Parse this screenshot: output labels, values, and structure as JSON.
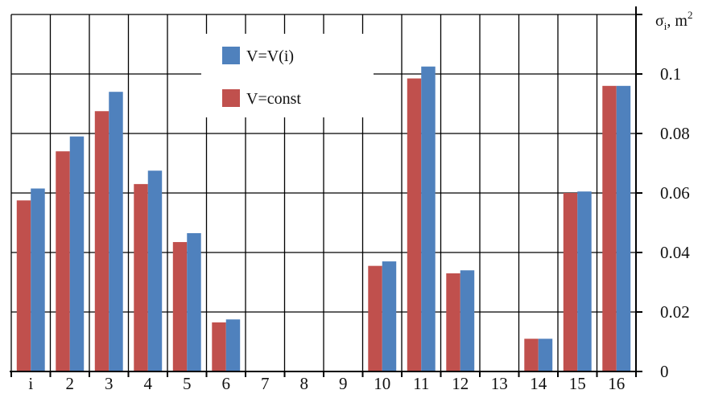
{
  "chart_data": {
    "type": "bar",
    "categories": [
      "i",
      "2",
      "3",
      "4",
      "5",
      "6",
      "7",
      "8",
      "9",
      "10",
      "11",
      "12",
      "13",
      "14",
      "15",
      "16"
    ],
    "series": [
      {
        "name": "V=const",
        "color": "#c0504d",
        "values": [
          0.0575,
          0.074,
          0.0875,
          0.063,
          0.0435,
          0.0165,
          0,
          0,
          0,
          0.0355,
          0.0985,
          0.033,
          0,
          0.011,
          0.06,
          0.096
        ]
      },
      {
        "name": "V=V(i)",
        "color": "#4f81bd",
        "values": [
          0.0615,
          0.079,
          0.094,
          0.0675,
          0.0465,
          0.0175,
          0,
          0,
          0,
          0.037,
          0.1025,
          0.034,
          0,
          0.011,
          0.0605,
          0.096
        ]
      }
    ],
    "legend_order": [
      "V=V(i)",
      "V=const"
    ],
    "y_ticks": [
      "0",
      "0.02",
      "0.04",
      "0.06",
      "0.08",
      "0.1"
    ],
    "y_tick_values": [
      0,
      0.02,
      0.04,
      0.06,
      0.08,
      0.1
    ],
    "ylabel": "σ",
    "ylabel_sub": "i",
    "ylabel_unit": ", m",
    "ylabel_sup": "2",
    "ylim": [
      0,
      0.12
    ],
    "y_axis_position": "right",
    "grid": true,
    "legend_position": "top-center"
  }
}
